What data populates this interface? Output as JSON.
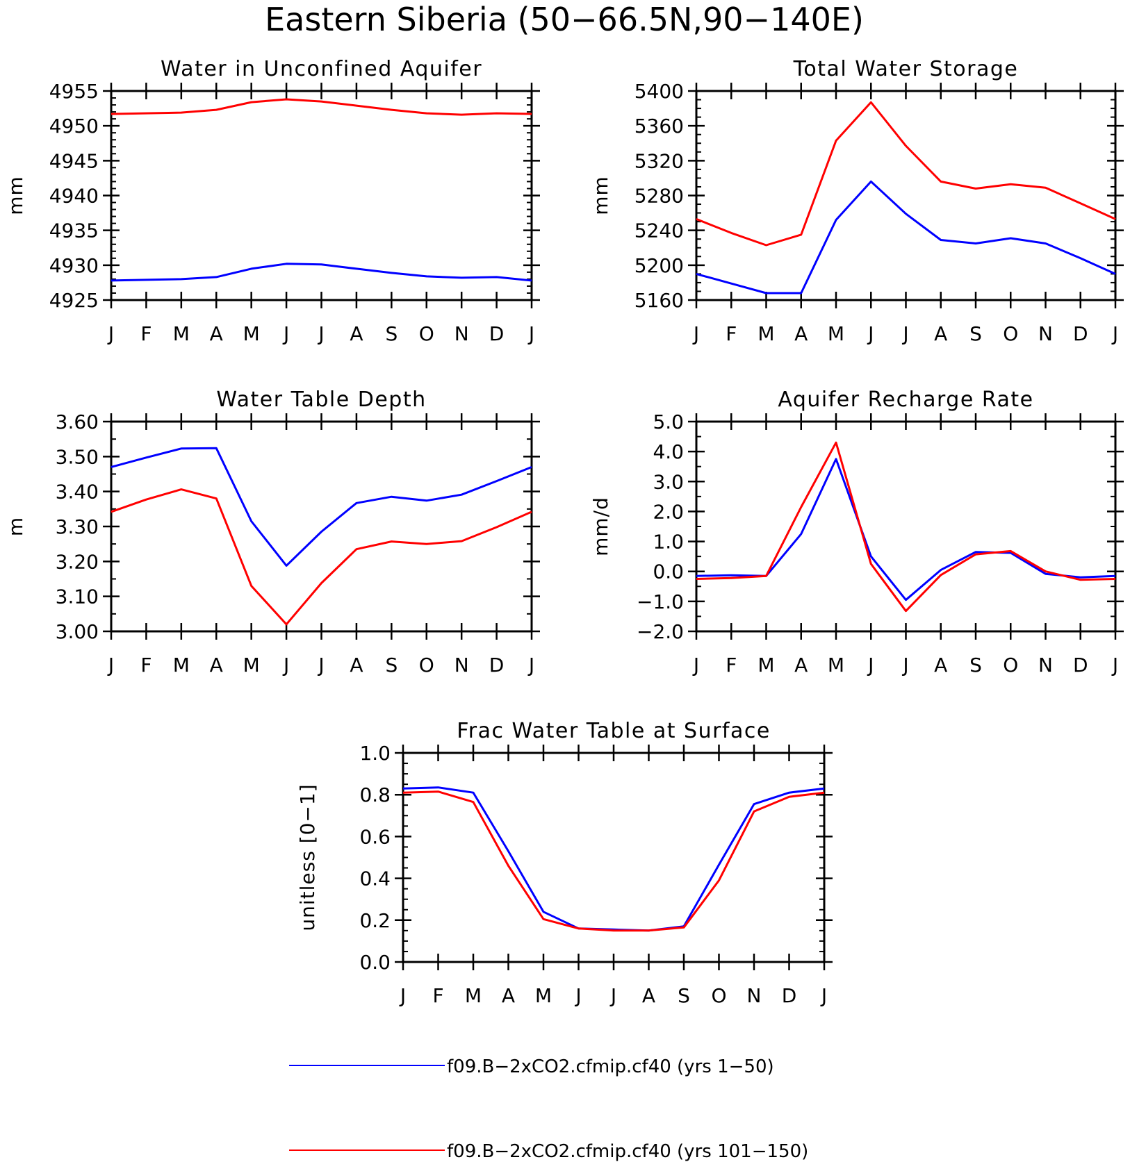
{
  "page": {
    "title": "Eastern Siberia (50−66.5N,90−140E)"
  },
  "colors": {
    "series1": "#0000ff",
    "series2": "#ff0000"
  },
  "legend": {
    "placement": "bottom",
    "items": [
      {
        "label": "f09.B−2xCO2.cfmip.cf40 (yrs 1−50)",
        "color": "#0000ff"
      },
      {
        "label": "f09.B−2xCO2.cfmip.cf40 (yrs 101−150)",
        "color": "#ff0000"
      }
    ]
  },
  "chart_data": [
    {
      "type": "line",
      "title": "Water in Unconfined Aquifer",
      "xlabel": "",
      "ylabel": "mm",
      "categories": [
        "J",
        "F",
        "M",
        "A",
        "M",
        "J",
        "J",
        "A",
        "S",
        "O",
        "N",
        "D",
        "J"
      ],
      "ylim": [
        4925,
        4955
      ],
      "yticks": [
        4925,
        4930,
        4935,
        4940,
        4945,
        4950,
        4955
      ],
      "ytick_labels": [
        "4925",
        "4930",
        "4935",
        "4940",
        "4945",
        "4950",
        "4955"
      ],
      "yminor_step": 1,
      "series": [
        {
          "values": [
            4927.8,
            4927.9,
            4928.0,
            4928.3,
            4929.5,
            4930.2,
            4930.1,
            4929.5,
            4928.9,
            4928.4,
            4928.2,
            4928.3,
            4927.8
          ],
          "color": "#0000ff"
        },
        {
          "values": [
            4951.7,
            4951.8,
            4951.9,
            4952.3,
            4953.4,
            4953.8,
            4953.5,
            4952.9,
            4952.3,
            4951.8,
            4951.6,
            4951.8,
            4951.7
          ],
          "color": "#ff0000"
        }
      ]
    },
    {
      "type": "line",
      "title": "Total Water Storage",
      "xlabel": "",
      "ylabel": "mm",
      "categories": [
        "J",
        "F",
        "M",
        "A",
        "M",
        "J",
        "J",
        "A",
        "S",
        "O",
        "N",
        "D",
        "J"
      ],
      "ylim": [
        5160,
        5400
      ],
      "yticks": [
        5160,
        5200,
        5240,
        5280,
        5320,
        5360,
        5400
      ],
      "ytick_labels": [
        "5160",
        "5200",
        "5240",
        "5280",
        "5320",
        "5360",
        "5400"
      ],
      "yminor_step": 10,
      "series": [
        {
          "values": [
            5190,
            5179,
            5168,
            5168,
            5252,
            5296,
            5259,
            5229,
            5225,
            5231,
            5225,
            5208,
            5190
          ],
          "color": "#0000ff"
        },
        {
          "values": [
            5253,
            5237,
            5223,
            5235,
            5343,
            5387,
            5337,
            5296,
            5288,
            5293,
            5289,
            5271,
            5253
          ],
          "color": "#ff0000"
        }
      ]
    },
    {
      "type": "line",
      "title": "Water Table Depth",
      "xlabel": "",
      "ylabel": "m",
      "categories": [
        "J",
        "F",
        "M",
        "A",
        "M",
        "J",
        "J",
        "A",
        "S",
        "O",
        "N",
        "D",
        "J"
      ],
      "ylim": [
        3.0,
        3.6
      ],
      "yticks": [
        3.0,
        3.1,
        3.2,
        3.3,
        3.4,
        3.5,
        3.6
      ],
      "ytick_labels": [
        "3.00",
        "3.10",
        "3.20",
        "3.30",
        "3.40",
        "3.50",
        "3.60"
      ],
      "yminor_step": 0.05,
      "series": [
        {
          "values": [
            3.47,
            3.497,
            3.523,
            3.524,
            3.315,
            3.188,
            3.285,
            3.367,
            3.385,
            3.374,
            3.391,
            3.43,
            3.47
          ],
          "color": "#0000ff"
        },
        {
          "values": [
            3.342,
            3.377,
            3.406,
            3.38,
            3.13,
            3.02,
            3.138,
            3.235,
            3.257,
            3.25,
            3.258,
            3.298,
            3.342
          ],
          "color": "#ff0000"
        }
      ]
    },
    {
      "type": "line",
      "title": "Aquifer Recharge Rate",
      "xlabel": "",
      "ylabel": "mm/d",
      "categories": [
        "J",
        "F",
        "M",
        "A",
        "M",
        "J",
        "J",
        "A",
        "S",
        "O",
        "N",
        "D",
        "J"
      ],
      "ylim": [
        -2.0,
        5.0
      ],
      "yticks": [
        -2.0,
        -1.0,
        0.0,
        1.0,
        2.0,
        3.0,
        4.0,
        5.0
      ],
      "ytick_labels": [
        "−2.0",
        "−1.0",
        "0.0",
        "1.0",
        "2.0",
        "3.0",
        "4.0",
        "5.0"
      ],
      "yminor_step": 0.5,
      "series": [
        {
          "values": [
            -0.15,
            -0.13,
            -0.15,
            1.25,
            3.75,
            0.5,
            -0.95,
            0.05,
            0.65,
            0.62,
            -0.08,
            -0.2,
            -0.15
          ],
          "color": "#0000ff"
        },
        {
          "values": [
            -0.25,
            -0.22,
            -0.15,
            2.15,
            4.3,
            0.25,
            -1.32,
            -0.12,
            0.57,
            0.68,
            0.0,
            -0.28,
            -0.25
          ],
          "color": "#ff0000"
        }
      ]
    },
    {
      "type": "line",
      "title": "Frac Water Table at Surface",
      "xlabel": "",
      "ylabel": "unitless [0−1]",
      "categories": [
        "J",
        "F",
        "M",
        "A",
        "M",
        "J",
        "J",
        "A",
        "S",
        "O",
        "N",
        "D",
        "J"
      ],
      "ylim": [
        0.0,
        1.0
      ],
      "yticks": [
        0.0,
        0.2,
        0.4,
        0.6,
        0.8,
        1.0
      ],
      "ytick_labels": [
        "0.0",
        "0.2",
        "0.4",
        "0.6",
        "0.8",
        "1.0"
      ],
      "yminor_step": 0.05,
      "series": [
        {
          "values": [
            0.83,
            0.835,
            0.81,
            0.53,
            0.24,
            0.16,
            0.155,
            0.15,
            0.17,
            0.465,
            0.755,
            0.81,
            0.83
          ],
          "color": "#0000ff"
        },
        {
          "values": [
            0.81,
            0.815,
            0.765,
            0.46,
            0.205,
            0.16,
            0.15,
            0.15,
            0.165,
            0.39,
            0.72,
            0.79,
            0.81
          ],
          "color": "#ff0000"
        }
      ]
    }
  ]
}
